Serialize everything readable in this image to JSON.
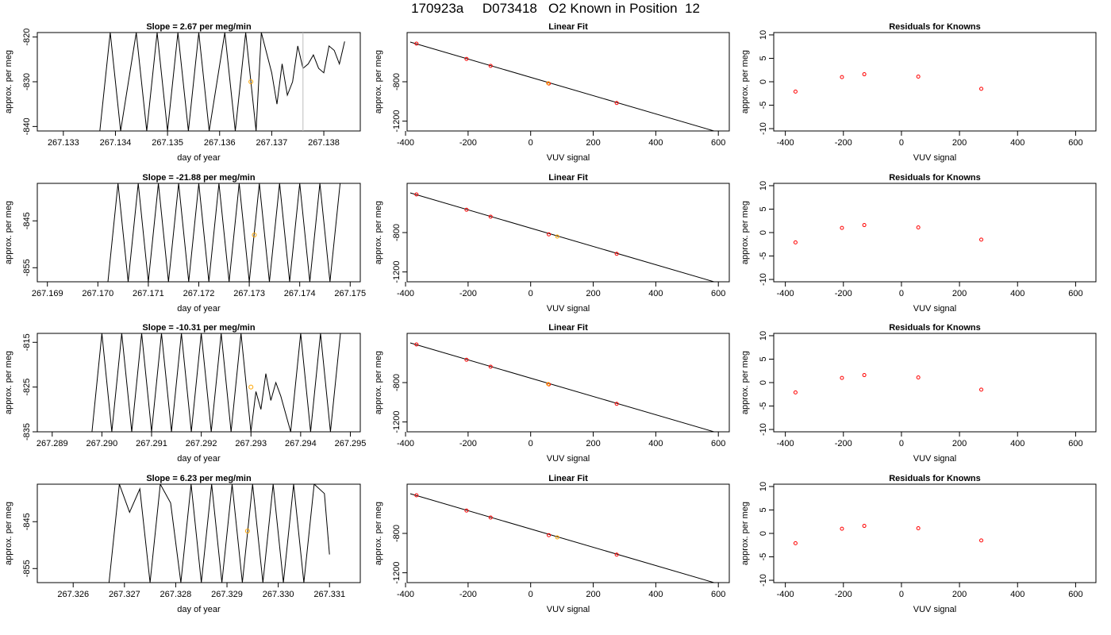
{
  "figure": {
    "title": "170923a     D073418   O2 Known in Position  12",
    "colors": {
      "trace": "#000000",
      "gray_trace": "#bebebe",
      "marker": "#ffa500",
      "point": "#ff0000",
      "fit": "#000000",
      "axis": "#000000"
    }
  },
  "chart_data": [
    {
      "type": "line",
      "panel": "row-1-timeseries",
      "title": "Slope =  2.67  per meg/min",
      "xlabel": "day of year",
      "ylabel": "approx. per meg",
      "xlim": [
        267.1325,
        267.1387
      ],
      "ylim": [
        -841,
        -819
      ],
      "xticks": [
        267.133,
        267.134,
        267.135,
        267.136,
        267.137,
        267.138
      ],
      "x_decimals": 3,
      "yticks": [
        -840,
        -830,
        -820
      ],
      "series": [
        {
          "x": [
            267.1337,
            267.1339,
            267.1341,
            267.1344,
            267.1346,
            267.1348,
            267.135,
            267.1352,
            267.1354,
            267.1356,
            267.1358,
            267.1361,
            267.1363,
            267.1365,
            267.1367,
            267.1368,
            267.137,
            267.1371,
            267.1372,
            267.1373,
            267.1374,
            267.1375,
            267.1376,
            267.1377,
            267.1378,
            267.1379,
            267.138,
            267.1381,
            267.1382,
            267.1383,
            267.1384
          ],
          "values": [
            -841,
            -819,
            -841,
            -819,
            -841,
            -819,
            -841,
            -819,
            -841,
            -819,
            -841,
            -819,
            -841,
            -819,
            -841,
            -819,
            -828,
            -835,
            -826,
            -833,
            -830,
            -822,
            -827,
            -826,
            -824,
            -827,
            -828,
            -822,
            -823,
            -826,
            -821
          ]
        }
      ],
      "gray_segment": {
        "x": 267.1376,
        "values": [
          -819,
          -841
        ]
      },
      "marker": {
        "x": 267.1366,
        "y": -830
      }
    },
    {
      "type": "scatter",
      "panel": "row-1-linear-fit",
      "title": "Linear Fit",
      "xlabel": "VUV signal",
      "ylabel": "approx. per meg",
      "xlim": [
        -395,
        635
      ],
      "ylim": [
        -1300,
        -300
      ],
      "xticks": [
        -400,
        -200,
        0,
        200,
        400,
        600
      ],
      "yticks": [
        -1200,
        -800
      ],
      "points": {
        "x": [
          -365,
          -205,
          -128,
          58,
          275
        ],
        "y": [
          -413,
          -568,
          -639,
          -818,
          -1016
        ]
      },
      "fit": {
        "x": [
          -385,
          625
        ],
        "y": [
          -397,
          -1336
        ]
      },
      "marker": {
        "x": 56,
        "y": -815
      }
    },
    {
      "type": "scatter",
      "panel": "row-1-residuals",
      "title": "Residuals for Knowns",
      "xlabel": "VUV signal",
      "ylabel": "approx. per meg",
      "xlim": [
        -440,
        670
      ],
      "ylim": [
        -10.5,
        10.5
      ],
      "xticks": [
        -400,
        -200,
        0,
        200,
        400,
        600
      ],
      "yticks": [
        -10,
        -5,
        0,
        5,
        10
      ],
      "points": {
        "x": [
          -365,
          -205,
          -128,
          58,
          275
        ],
        "y": [
          -2.1,
          1.0,
          1.6,
          1.1,
          -1.5
        ]
      }
    },
    {
      "type": "line",
      "panel": "row-2-timeseries",
      "title": "Slope =  -21.88  per meg/min",
      "xlabel": "day of year",
      "ylabel": "approx. per meg",
      "xlim": [
        267.1688,
        267.1752
      ],
      "ylim": [
        -858,
        -837
      ],
      "xticks": [
        267.169,
        267.17,
        267.171,
        267.172,
        267.173,
        267.174,
        267.175
      ],
      "x_decimals": 3,
      "yticks": [
        -855,
        -845
      ],
      "series": [
        {
          "x": [
            267.1702,
            267.1704,
            267.1706,
            267.1708,
            267.171,
            267.1712,
            267.1714,
            267.1716,
            267.1718,
            267.172,
            267.1722,
            267.1724,
            267.1726,
            267.1728,
            267.173,
            267.1732,
            267.1734,
            267.1736,
            267.1738,
            267.174,
            267.1742,
            267.1744,
            267.1746,
            267.1748
          ],
          "values": [
            -858,
            -837,
            -858,
            -837,
            -858,
            -837,
            -858,
            -837,
            -858,
            -837,
            -858,
            -837,
            -858,
            -837,
            -858,
            -837,
            -858,
            -837,
            -858,
            -837,
            -858,
            -837,
            -858,
            -837
          ]
        }
      ],
      "marker": {
        "x": 267.1731,
        "y": -848
      }
    },
    {
      "type": "scatter",
      "panel": "row-2-linear-fit",
      "title": "Linear Fit",
      "xlabel": "VUV signal",
      "ylabel": "approx. per meg",
      "xlim": [
        -395,
        635
      ],
      "ylim": [
        -1300,
        -300
      ],
      "xticks": [
        -400,
        -200,
        0,
        200,
        400,
        600
      ],
      "yticks": [
        -1200,
        -800
      ],
      "points": {
        "x": [
          -365,
          -205,
          -128,
          58,
          275
        ],
        "y": [
          -413,
          -568,
          -639,
          -818,
          -1016
        ]
      },
      "fit": {
        "x": [
          -385,
          625
        ],
        "y": [
          -397,
          -1336
        ]
      },
      "marker": {
        "x": 85,
        "y": -840
      }
    },
    {
      "type": "scatter",
      "panel": "row-2-residuals",
      "title": "Residuals for Knowns",
      "xlabel": "VUV signal",
      "ylabel": "approx. per meg",
      "xlim": [
        -440,
        670
      ],
      "ylim": [
        -10.5,
        10.5
      ],
      "xticks": [
        -400,
        -200,
        0,
        200,
        400,
        600
      ],
      "yticks": [
        -10,
        -5,
        0,
        5,
        10
      ],
      "points": {
        "x": [
          -365,
          -205,
          -128,
          58,
          275
        ],
        "y": [
          -2.1,
          1.0,
          1.6,
          1.1,
          -1.5
        ]
      }
    },
    {
      "type": "line",
      "panel": "row-3-timeseries",
      "title": "Slope =  -10.31  per meg/min",
      "xlabel": "day of year",
      "ylabel": "approx. per meg",
      "xlim": [
        267.2887,
        267.2952
      ],
      "ylim": [
        -835,
        -813
      ],
      "xticks": [
        267.289,
        267.29,
        267.291,
        267.292,
        267.293,
        267.294,
        267.295
      ],
      "x_decimals": 3,
      "yticks": [
        -835,
        -825,
        -815
      ],
      "series": [
        {
          "x": [
            267.2898,
            267.29,
            267.2902,
            267.2904,
            267.2906,
            267.2908,
            267.291,
            267.2912,
            267.2914,
            267.2916,
            267.2918,
            267.292,
            267.2922,
            267.2924,
            267.2926,
            267.2928,
            267.293,
            267.2931,
            267.2932,
            267.2933,
            267.2934,
            267.2935,
            267.2936,
            267.2938,
            267.294,
            267.2942,
            267.2944,
            267.2946,
            267.2948
          ],
          "values": [
            -835,
            -813,
            -835,
            -813,
            -835,
            -813,
            -835,
            -813,
            -835,
            -813,
            -835,
            -813,
            -835,
            -813,
            -835,
            -813,
            -835,
            -826,
            -830,
            -822,
            -828,
            -824,
            -827,
            -835,
            -813,
            -835,
            -813,
            -835,
            -813
          ]
        }
      ],
      "marker": {
        "x": 267.293,
        "y": -825
      }
    },
    {
      "type": "scatter",
      "panel": "row-3-linear-fit",
      "title": "Linear Fit",
      "xlabel": "VUV signal",
      "ylabel": "approx. per meg",
      "xlim": [
        -395,
        635
      ],
      "ylim": [
        -1300,
        -300
      ],
      "xticks": [
        -400,
        -200,
        0,
        200,
        400,
        600
      ],
      "yticks": [
        -1200,
        -800
      ],
      "points": {
        "x": [
          -365,
          -205,
          -128,
          58,
          275
        ],
        "y": [
          -413,
          -568,
          -639,
          -818,
          -1016
        ]
      },
      "fit": {
        "x": [
          -385,
          625
        ],
        "y": [
          -397,
          -1336
        ]
      },
      "marker": {
        "x": 56,
        "y": -815
      }
    },
    {
      "type": "scatter",
      "panel": "row-3-residuals",
      "title": "Residuals for Knowns",
      "xlabel": "VUV signal",
      "ylabel": "approx. per meg",
      "xlim": [
        -440,
        670
      ],
      "ylim": [
        -10.5,
        10.5
      ],
      "xticks": [
        -400,
        -200,
        0,
        200,
        400,
        600
      ],
      "yticks": [
        -10,
        -5,
        0,
        5,
        10
      ],
      "points": {
        "x": [
          -365,
          -205,
          -128,
          58,
          275
        ],
        "y": [
          -2.1,
          1.0,
          1.6,
          1.1,
          -1.5
        ]
      }
    },
    {
      "type": "line",
      "panel": "row-4-timeseries",
      "title": "Slope =  6.23  per meg/min",
      "xlabel": "day of year",
      "ylabel": "approx. per meg",
      "xlim": [
        267.3253,
        267.3316
      ],
      "ylim": [
        -858,
        -837
      ],
      "xticks": [
        267.326,
        267.327,
        267.328,
        267.329,
        267.33,
        267.331
      ],
      "x_decimals": 3,
      "yticks": [
        -855,
        -845
      ],
      "series": [
        {
          "x": [
            267.3267,
            267.3269,
            267.3271,
            267.3273,
            267.3275,
            267.3277,
            267.3279,
            267.3281,
            267.3283,
            267.3285,
            267.3287,
            267.3289,
            267.3291,
            267.3293,
            267.3295,
            267.3297,
            267.3299,
            267.3301,
            267.3303,
            267.3305,
            267.3307,
            267.3309,
            267.331
          ],
          "values": [
            -858,
            -837,
            -843,
            -838,
            -858,
            -837,
            -841,
            -858,
            -837,
            -858,
            -837,
            -858,
            -837,
            -858,
            -837,
            -858,
            -837,
            -858,
            -837,
            -858,
            -837,
            -839,
            -852
          ]
        }
      ],
      "marker": {
        "x": 267.3294,
        "y": -847
      }
    },
    {
      "type": "scatter",
      "panel": "row-4-linear-fit",
      "title": "Linear Fit",
      "xlabel": "VUV signal",
      "ylabel": "approx. per meg",
      "xlim": [
        -395,
        635
      ],
      "ylim": [
        -1300,
        -300
      ],
      "xticks": [
        -400,
        -200,
        0,
        200,
        400,
        600
      ],
      "yticks": [
        -1200,
        -800
      ],
      "points": {
        "x": [
          -365,
          -205,
          -128,
          58,
          275
        ],
        "y": [
          -413,
          -568,
          -639,
          -818,
          -1016
        ]
      },
      "fit": {
        "x": [
          -385,
          625
        ],
        "y": [
          -397,
          -1336
        ]
      },
      "marker": {
        "x": 85,
        "y": -840
      }
    },
    {
      "type": "scatter",
      "panel": "row-4-residuals",
      "title": "Residuals for Knowns",
      "xlabel": "VUV signal",
      "ylabel": "approx. per meg",
      "xlim": [
        -440,
        670
      ],
      "ylim": [
        -10.5,
        10.5
      ],
      "xticks": [
        -400,
        -200,
        0,
        200,
        400,
        600
      ],
      "yticks": [
        -10,
        -5,
        0,
        5,
        10
      ],
      "points": {
        "x": [
          -365,
          -205,
          -128,
          58,
          275
        ],
        "y": [
          -2.1,
          1.0,
          1.6,
          1.1,
          -1.5
        ]
      }
    }
  ]
}
